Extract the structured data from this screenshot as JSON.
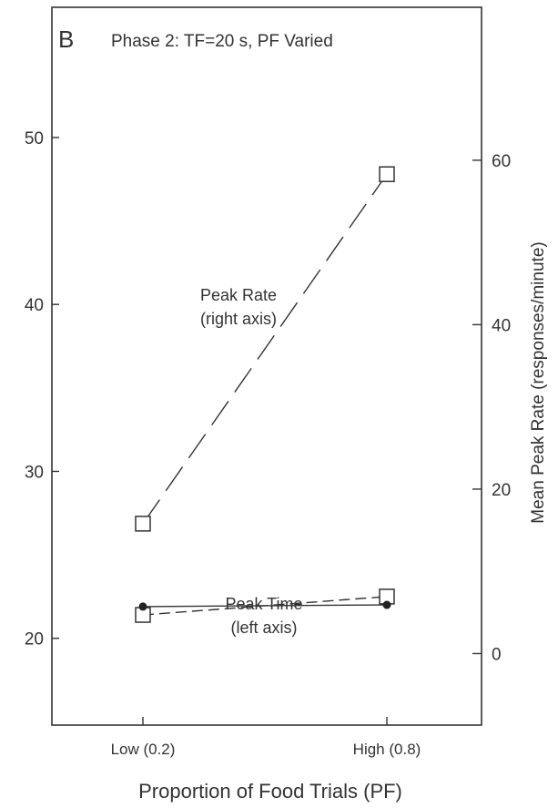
{
  "chart_data": {
    "type": "line",
    "panel_label": "B",
    "title": "Phase 2: TF=20 s, PF Varied",
    "xlabel": "Proportion of Food Trials (PF)",
    "ylabel_right": "Mean Peak Rate (responses/minute)",
    "categories": [
      "Low (0.2)",
      "High (0.8)"
    ],
    "left_axis": {
      "ticks": [
        20,
        30,
        40,
        50
      ],
      "range": [
        14.8,
        57.8
      ]
    },
    "right_axis": {
      "ticks": [
        0,
        20,
        40,
        60
      ],
      "range": [
        -8.7,
        78.6
      ]
    },
    "series": [
      {
        "name": "Peak Rate",
        "axis": "right",
        "marker": "open-square",
        "line": "long-dash",
        "values": [
          15.8,
          58.3
        ]
      },
      {
        "name": "Peak Time",
        "axis": "left",
        "marker": "open-square",
        "line": "dashed",
        "values": [
          21.4,
          22.5
        ]
      },
      {
        "name": "Peak Time",
        "axis": "left",
        "marker": "filled-circle",
        "line": "solid",
        "values": [
          21.9,
          22.0
        ]
      }
    ],
    "annotations": [
      {
        "lines": [
          "Peak Rate",
          "(right axis)"
        ]
      },
      {
        "lines": [
          "Peak Time",
          "(left axis)"
        ]
      }
    ]
  }
}
